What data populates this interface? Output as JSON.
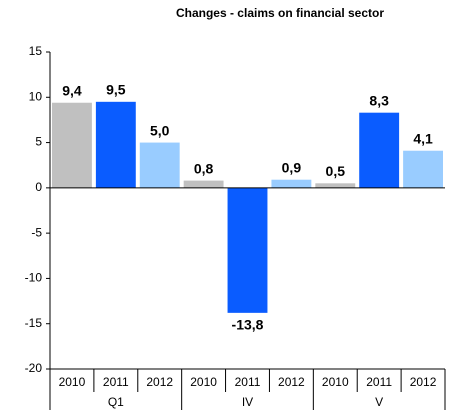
{
  "chart_data": {
    "type": "bar",
    "title": "Changes - claims on financial sector",
    "categories": [
      "Q1",
      "IV",
      "V"
    ],
    "series": [
      {
        "name": "2010",
        "color": "#c0c0c0",
        "values": [
          9.4,
          0.8,
          0.5
        ],
        "value_labels": [
          "9,4",
          "0,8",
          "0,5"
        ]
      },
      {
        "name": "2011",
        "color": "#0a5cff",
        "values": [
          9.5,
          -13.8,
          8.3
        ],
        "value_labels": [
          "9,5",
          "-13,8",
          "8,3"
        ]
      },
      {
        "name": "2012",
        "color": "#99ccff",
        "values": [
          5.0,
          0.9,
          4.1
        ],
        "value_labels": [
          "5,0",
          "0,9",
          "4,1"
        ]
      }
    ],
    "ylim": [
      -20,
      15
    ],
    "yticks": [
      -20,
      -15,
      -10,
      -5,
      0,
      5,
      10,
      15
    ],
    "grid": false
  }
}
